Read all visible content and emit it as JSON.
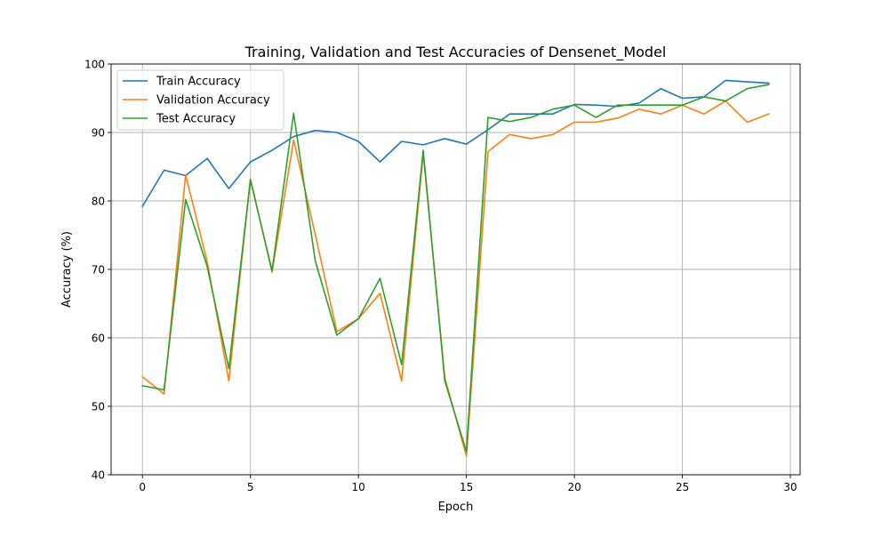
{
  "chart_data": {
    "type": "line",
    "title": "Training, Validation and Test Accuracies of Densenet_Model",
    "xlabel": "Epoch",
    "ylabel": "Accuracy (%)",
    "xlim": [
      -1.45,
      30.45
    ],
    "ylim": [
      40,
      100
    ],
    "xticks": [
      0,
      5,
      10,
      15,
      20,
      25,
      30
    ],
    "yticks": [
      40,
      50,
      60,
      70,
      80,
      90,
      100
    ],
    "grid": true,
    "legend_position": "top-left",
    "x": [
      0,
      1,
      2,
      3,
      4,
      5,
      6,
      7,
      8,
      9,
      10,
      11,
      12,
      13,
      14,
      15,
      16,
      17,
      18,
      19,
      20,
      21,
      22,
      23,
      24,
      25,
      26,
      27,
      28,
      29
    ],
    "series": [
      {
        "name": "Train Accuracy",
        "color": "#1f77b4",
        "values": [
          79.2,
          84.5,
          83.7,
          86.2,
          81.8,
          85.7,
          87.4,
          89.4,
          90.3,
          90.0,
          88.7,
          85.7,
          88.7,
          88.2,
          89.1,
          88.3,
          90.4,
          92.7,
          92.7,
          92.7,
          94.1,
          94.0,
          93.8,
          94.3,
          96.4,
          95.0,
          95.2,
          97.6,
          97.4,
          97.2
        ]
      },
      {
        "name": "Validation Accuracy",
        "color": "#ff7f0e",
        "values": [
          54.3,
          51.8,
          83.8,
          71.1,
          53.7,
          83.2,
          69.6,
          88.9,
          75.1,
          60.9,
          62.8,
          66.5,
          53.7,
          86.9,
          54.2,
          42.7,
          87.2,
          89.7,
          89.1,
          89.7,
          91.5,
          91.5,
          92.1,
          93.4,
          92.7,
          94.0,
          92.7,
          94.6,
          91.5,
          92.7
        ]
      },
      {
        "name": "Test Accuracy",
        "color": "#2ca02c",
        "values": [
          53.0,
          52.4,
          80.2,
          70.4,
          55.5,
          83.1,
          69.8,
          92.8,
          71.3,
          60.4,
          62.8,
          68.7,
          56.1,
          87.4,
          53.7,
          43.4,
          92.2,
          91.6,
          92.2,
          93.4,
          94.0,
          92.2,
          94.0,
          94.0,
          94.0,
          94.0,
          95.2,
          94.6,
          96.4,
          97.0
        ]
      }
    ]
  }
}
